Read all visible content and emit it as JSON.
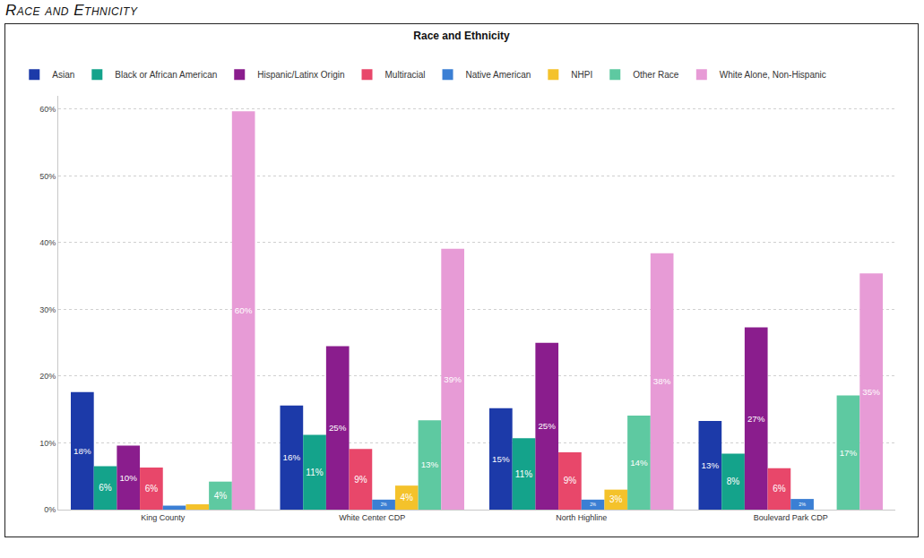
{
  "heading": "Race and Ethnicity",
  "chart_data": {
    "type": "bar",
    "title": "Race and Ethnicity",
    "categories": [
      "King County",
      "White Center CDP",
      "North Highline",
      "Boulevard Park CDP"
    ],
    "series": [
      {
        "name": "Asian",
        "color": "#1c3aa9",
        "values": [
          17.6,
          15.6,
          15.2,
          13.3
        ],
        "value_labels": [
          "18%",
          "16%",
          "15%",
          "13%"
        ]
      },
      {
        "name": "Black or African American",
        "color": "#14a38b",
        "values": [
          6.5,
          11.2,
          10.7,
          8.4
        ],
        "value_labels": [
          "6%",
          "11%",
          "11%",
          "8%"
        ]
      },
      {
        "name": "Hispanic/Latinx Origin",
        "color": "#8a1d8d",
        "values": [
          9.6,
          24.5,
          25.0,
          27.3
        ],
        "value_labels": [
          "10%",
          "25%",
          "25%",
          "27%"
        ]
      },
      {
        "name": "Multiracial",
        "color": "#e8476a",
        "values": [
          6.3,
          9.1,
          8.6,
          6.2
        ],
        "value_labels": [
          "6%",
          "9%",
          "9%",
          "6%"
        ]
      },
      {
        "name": "Native American",
        "color": "#3b7fd4",
        "values": [
          0.6,
          1.5,
          1.5,
          1.6
        ],
        "value_labels": [
          null,
          "2%",
          "2%",
          "2%"
        ]
      },
      {
        "name": "NHPI",
        "color": "#f4c22b",
        "values": [
          0.8,
          3.6,
          3.0,
          null
        ],
        "value_labels": [
          null,
          "4%",
          "3%",
          null
        ]
      },
      {
        "name": "Other Race",
        "color": "#5ec9a1",
        "values": [
          4.2,
          13.4,
          14.1,
          17.1
        ],
        "value_labels": [
          "4%",
          "13%",
          "14%",
          "17%"
        ]
      },
      {
        "name": "White Alone, Non-Hispanic",
        "color": "#e79bd6",
        "values": [
          59.7,
          39.1,
          38.4,
          35.4
        ],
        "value_labels": [
          "60%",
          "39%",
          "38%",
          "35%"
        ]
      }
    ],
    "ylim": [
      0,
      62
    ],
    "yticks": [
      {
        "value": 0,
        "label": "0%"
      },
      {
        "value": 10,
        "label": "10%"
      },
      {
        "value": 20,
        "label": "20%"
      },
      {
        "value": 30,
        "label": "30%"
      },
      {
        "value": 40,
        "label": "40%"
      },
      {
        "value": 50,
        "label": "50%"
      },
      {
        "value": 60,
        "label": "60%"
      }
    ],
    "grid": true,
    "legend": "top",
    "data_labels": true
  }
}
